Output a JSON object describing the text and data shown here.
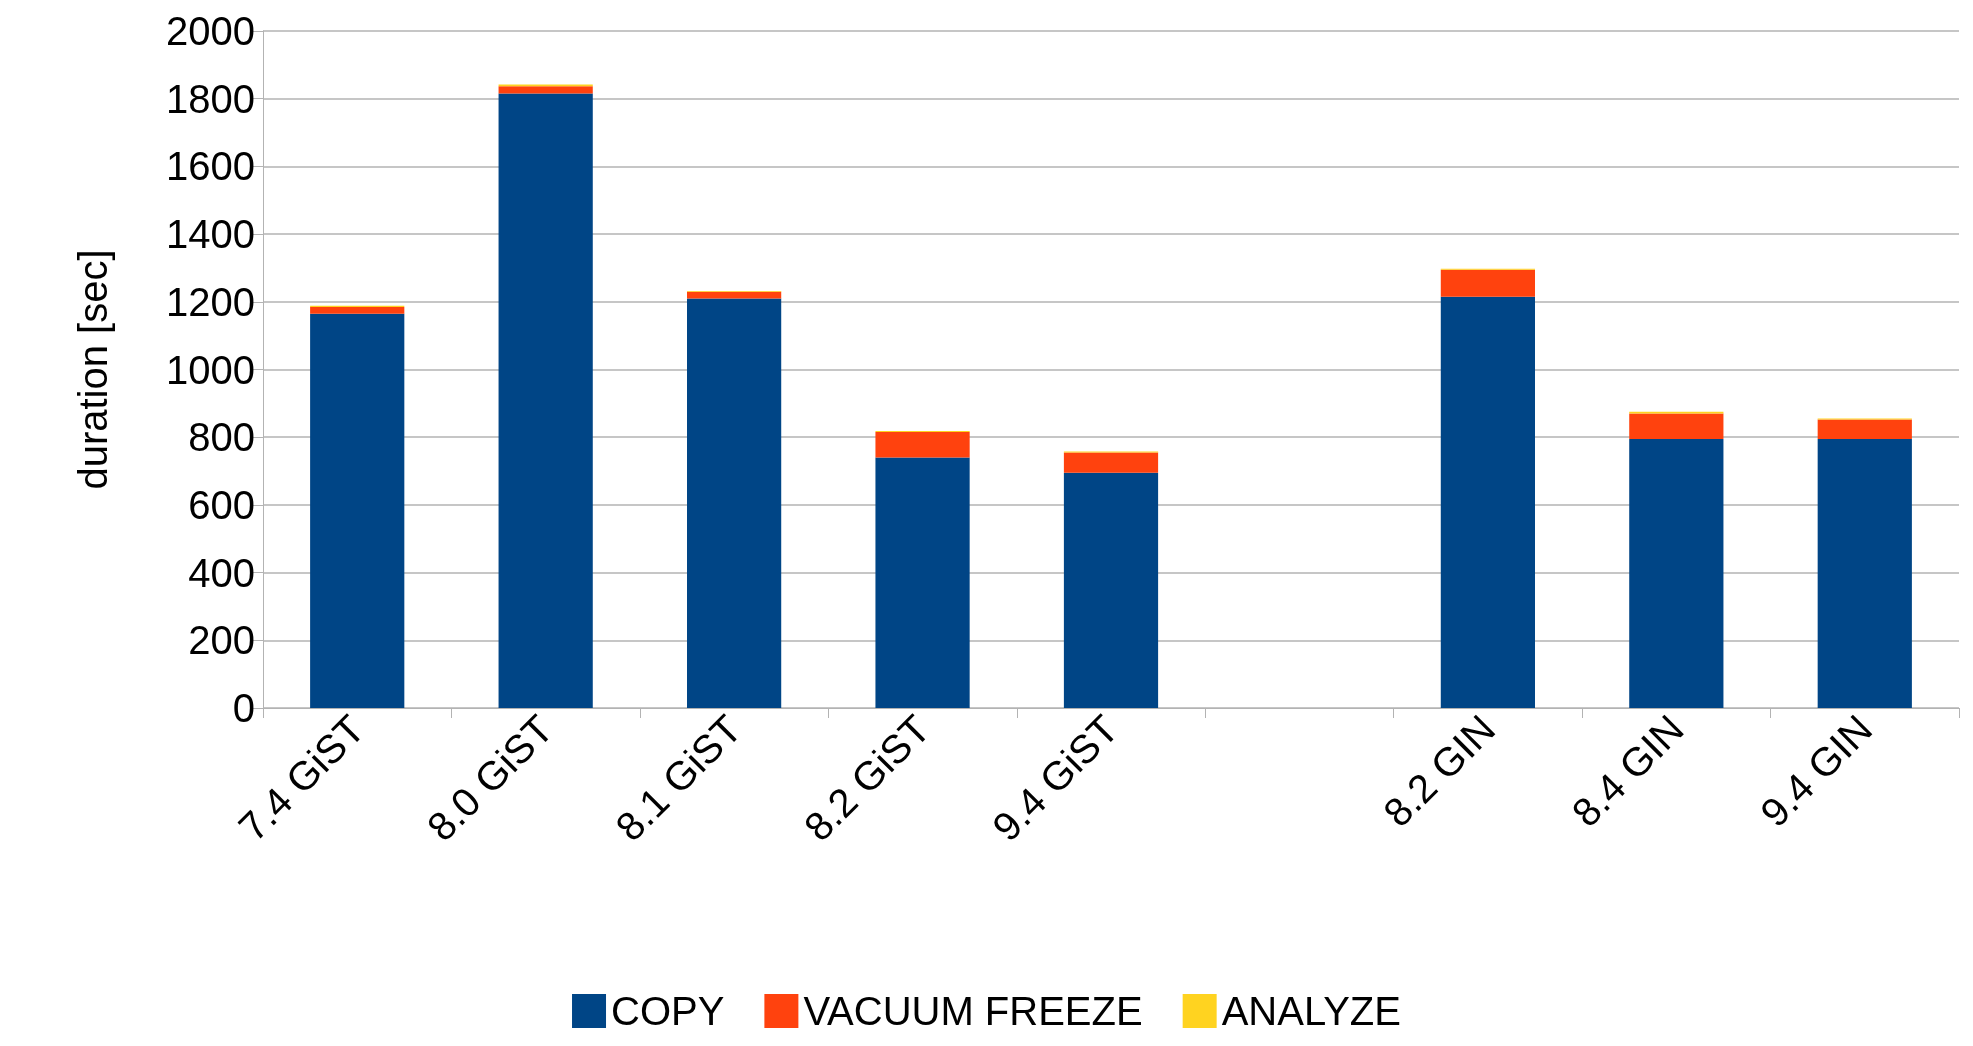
{
  "chart_data": {
    "type": "bar",
    "stacked": true,
    "ylabel": "duration [sec]",
    "categories": [
      "7.4 GiST",
      "8.0 GiST",
      "8.1 GiST",
      "8.2 GiST",
      "9.4 GiST",
      null,
      "8.2 GIN",
      "8.4 GIN",
      "9.4 GIN"
    ],
    "series": [
      {
        "name": "COPY",
        "color": "#004586",
        "values": [
          1165,
          1815,
          1210,
          740,
          695,
          null,
          1215,
          795,
          795
        ]
      },
      {
        "name": "VACUUM FREEZE",
        "color": "#ff420e",
        "values": [
          20,
          22,
          20,
          75,
          60,
          null,
          80,
          75,
          57
        ]
      },
      {
        "name": "ANALYZE",
        "color": "#ffd320",
        "values": [
          3,
          5,
          2,
          3,
          3,
          null,
          3,
          5,
          3
        ]
      }
    ],
    "ylim": [
      0,
      2000
    ],
    "yticks": [
      0,
      200,
      400,
      600,
      800,
      1000,
      1200,
      1400,
      1600,
      1800,
      2000
    ],
    "grid": "y",
    "legend": "bottom"
  }
}
